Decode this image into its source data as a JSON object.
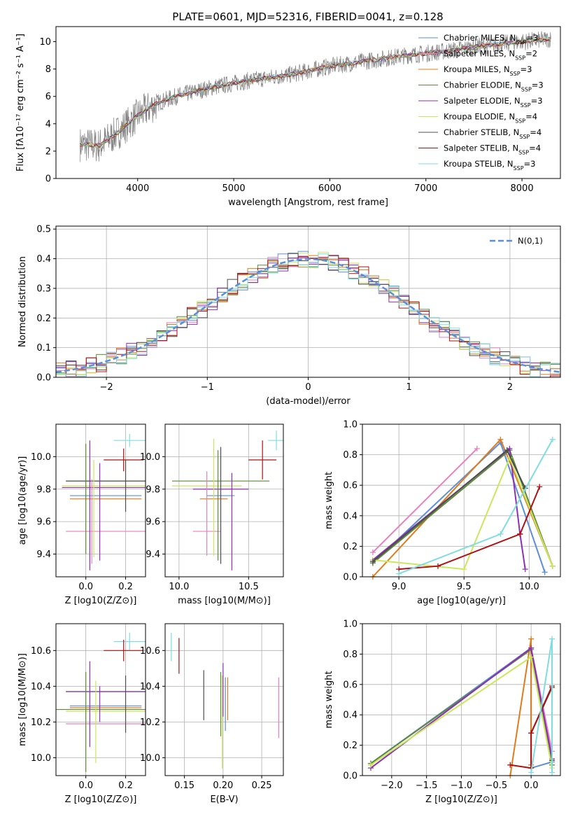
{
  "figure": {
    "title": "PLATE=0601, MJD=52316, FIBERID=0041, z=0.128"
  },
  "colors": {
    "Chabrier MILES": "#5b8fd9",
    "Salpeter MILES": "#e680c0",
    "Kroupa MILES": "#e07b1c",
    "Chabrier ELODIE": "#5e8a3a",
    "Salpeter ELODIE": "#8e2fb8",
    "Kroupa ELODIE": "#c9e85a",
    "Chabrier STELIB": "#4d4d4d",
    "Salpeter STELIB": "#b01010",
    "Kroupa STELIB": "#7fdde0",
    "data": "#808080",
    "normal": "#5b8fd9"
  },
  "chart_data": [
    {
      "id": "spectrum",
      "type": "line",
      "title": "PLATE=0601, MJD=52316, FIBERID=0041, z=0.128",
      "xlabel": "wavelength [Angstrom, rest frame]",
      "ylabel": "Flux [fλ10⁻¹⁷ erg cm⁻² s⁻¹ A⁻¹]",
      "xlim": [
        3150,
        8400
      ],
      "ylim": [
        0,
        11.1
      ],
      "xticks": [
        4000,
        5000,
        6000,
        7000,
        8000
      ],
      "yticks": [
        0,
        2,
        4,
        6,
        8,
        10
      ],
      "legend": "top-right",
      "legend_entries": [
        {
          "name": "Chabrier MILES",
          "nssp": "3"
        },
        {
          "name": "Salpeter MILES",
          "nssp": "2"
        },
        {
          "name": "Kroupa MILES",
          "nssp": "3"
        },
        {
          "name": "Chabrier ELODIE",
          "nssp": "3"
        },
        {
          "name": "Salpeter ELODIE",
          "nssp": "3"
        },
        {
          "name": "Kroupa ELODIE",
          "nssp": "4"
        },
        {
          "name": "Chabrier STELIB",
          "nssp": "4"
        },
        {
          "name": "Salpeter STELIB",
          "nssp": "4"
        },
        {
          "name": "Kroupa STELIB",
          "nssp": "3"
        }
      ],
      "continuum": {
        "x": [
          3400,
          3600,
          3800,
          4000,
          4200,
          4400,
          4800,
          5200,
          5600,
          6000,
          6400,
          6800,
          7200,
          7600,
          8000,
          8300
        ],
        "y": [
          2.5,
          2.4,
          3.4,
          4.6,
          5.5,
          6.0,
          6.7,
          7.2,
          7.6,
          8.2,
          8.6,
          9.0,
          9.3,
          9.7,
          10.0,
          10.2
        ]
      }
    },
    {
      "id": "residual-histogram",
      "type": "bar",
      "xlabel": "(data-model)/error",
      "ylabel": "Normed distribution",
      "xlim": [
        -2.5,
        2.5
      ],
      "ylim": [
        0,
        0.51
      ],
      "xticks": [
        -2,
        -1,
        0,
        1,
        2
      ],
      "yticks": [
        0.0,
        0.1,
        0.2,
        0.3,
        0.4,
        0.5
      ],
      "grid": true,
      "legend": "top-right",
      "legend_label": "N(0,1)",
      "bin_width": 0.1
    },
    {
      "id": "age-vs-Z",
      "type": "scatter",
      "xlabel": "Z [log10(Z/Z⊙)]",
      "ylabel": "age [log10(age/yr)]",
      "xlim": [
        -0.15,
        0.3
      ],
      "ylim": [
        9.26,
        10.2
      ],
      "xticks": [
        0.0,
        0.2
      ],
      "yticks": [
        9.4,
        9.6,
        9.8,
        10.0
      ],
      "grid": true,
      "points": [
        {
          "series": "Chabrier MILES",
          "x": 0.1,
          "xerr": 0.18,
          "y": 9.76,
          "yerr": 0.0
        },
        {
          "series": "Salpeter MILES",
          "x": 0.1,
          "xerr": 0.2,
          "y": 9.54,
          "yerr": 0.0
        },
        {
          "series": "Kroupa MILES",
          "x": 0.1,
          "xerr": 0.18,
          "y": 9.74,
          "yerr": 0.0
        },
        {
          "series": "Chabrier ELODIE",
          "x": 0.1,
          "xerr": 0.2,
          "y": 9.85,
          "yerr": 0.0
        },
        {
          "series": "Salpeter ELODIE",
          "x": 0.1,
          "xerr": 0.22,
          "y": 9.81,
          "yerr": 0.0
        },
        {
          "series": "Kroupa ELODIE",
          "x": 0.1,
          "xerr": 0.22,
          "y": 9.82,
          "yerr": 0.0
        },
        {
          "series": "Chabrier STELIB",
          "x": 0.1,
          "xerr": 0.2,
          "y": 9.85,
          "yerr": 0.0
        },
        {
          "series": "Salpeter STELIB",
          "x": 0.19,
          "xerr": 0.1,
          "y": 9.98,
          "yerr": 0.0
        },
        {
          "series": "Kroupa STELIB",
          "x": 0.22,
          "xerr": 0.08,
          "y": 10.1,
          "yerr": 0.0
        }
      ]
    },
    {
      "id": "age-vs-mass",
      "type": "scatter",
      "xlabel": "mass [log10(M/M⊙)]",
      "xlim": [
        9.9,
        10.75
      ],
      "ylim": [
        9.26,
        10.2
      ],
      "xticks": [
        10.0,
        10.5
      ],
      "yticks": [
        9.4,
        9.6,
        9.8,
        10.0
      ],
      "grid": true
    },
    {
      "id": "mass-weight-vs-age",
      "type": "line",
      "xlabel": "age [log10(age/yr)]",
      "ylabel": "mass weight",
      "xlim": [
        8.72,
        10.24
      ],
      "ylim": [
        0,
        1.0
      ],
      "xticks": [
        9.0,
        9.5,
        10.0
      ],
      "yticks": [
        0.0,
        0.2,
        0.4,
        0.6,
        0.8,
        1.0
      ],
      "grid": true,
      "series": [
        {
          "name": "Chabrier MILES",
          "x": [
            8.8,
            9.78,
            10.12
          ],
          "y": [
            0.09,
            0.88,
            0.03
          ]
        },
        {
          "name": "Salpeter MILES",
          "x": [
            8.8,
            9.6
          ],
          "y": [
            0.16,
            0.84
          ]
        },
        {
          "name": "Kroupa MILES",
          "x": [
            8.8,
            9.78,
            10.18
          ],
          "y": [
            0.0,
            0.9,
            0.07
          ]
        },
        {
          "name": "Chabrier ELODIE",
          "x": [
            8.8,
            9.85,
            10.18
          ],
          "y": [
            0.09,
            0.83,
            0.07
          ]
        },
        {
          "name": "Salpeter ELODIE",
          "x": [
            8.8,
            9.85,
            9.93,
            9.97
          ],
          "y": [
            0.11,
            0.84,
            0.28,
            0.05
          ]
        },
        {
          "name": "Kroupa ELODIE",
          "x": [
            8.8,
            9.5,
            9.85,
            10.18
          ],
          "y": [
            0.11,
            0.05,
            0.78,
            0.07
          ]
        },
        {
          "name": "Chabrier STELIB",
          "x": [
            8.8,
            9.83,
            9.97
          ],
          "y": [
            0.1,
            0.83,
            0.58
          ]
        },
        {
          "name": "Salpeter STELIB",
          "x": [
            9.0,
            9.3,
            9.93,
            10.08
          ],
          "y": [
            0.05,
            0.07,
            0.28,
            0.59
          ]
        },
        {
          "name": "Kroupa STELIB",
          "x": [
            9.0,
            9.78,
            10.18
          ],
          "y": [
            0.02,
            0.28,
            0.9
          ]
        }
      ]
    },
    {
      "id": "mass-vs-Z",
      "type": "scatter",
      "xlabel": "Z [log10(Z/Z⊙)]",
      "ylabel": "mass [log10(M/M⊙)]",
      "xlim": [
        -0.15,
        0.3
      ],
      "ylim": [
        9.9,
        10.75
      ],
      "xticks": [
        0.0,
        0.2
      ],
      "yticks": [
        10.0,
        10.2,
        10.4,
        10.6
      ],
      "grid": true
    },
    {
      "id": "mass-vs-ebv",
      "type": "scatter",
      "xlabel": "E(B-V)",
      "xlim": [
        0.125,
        0.278
      ],
      "ylim": [
        9.9,
        10.75
      ],
      "xticks": [
        0.15,
        0.2,
        0.25
      ],
      "yticks": [
        10.0,
        10.2,
        10.4,
        10.6
      ],
      "grid": true
    },
    {
      "id": "mass-weight-vs-Z",
      "type": "line",
      "xlabel": "Z [log10(Z/Z⊙)]",
      "ylabel": "mass weight",
      "xlim": [
        -2.42,
        0.42
      ],
      "ylim": [
        0,
        1.0
      ],
      "xticks": [
        -2.0,
        -1.5,
        -1.0,
        -0.5,
        0.0
      ],
      "yticks": [
        0.0,
        0.2,
        0.4,
        0.6,
        0.8,
        1.0
      ],
      "grid": true,
      "series": [
        {
          "name": "Chabrier MILES",
          "x": [
            -2.3,
            0.0,
            0.0,
            0.3
          ],
          "y": [
            0.08,
            0.84,
            0.05,
            0.09
          ]
        },
        {
          "name": "Salpeter MILES",
          "x": [
            0.0,
            0.3
          ],
          "y": [
            0.84,
            0.16
          ]
        },
        {
          "name": "Kroupa MILES",
          "x": [
            -0.3,
            0.0,
            0.0
          ],
          "y": [
            0.0,
            0.9,
            0.07
          ]
        },
        {
          "name": "Chabrier ELODIE",
          "x": [
            -2.3,
            0.0,
            0.3
          ],
          "y": [
            0.08,
            0.83,
            0.07
          ]
        },
        {
          "name": "Salpeter ELODIE",
          "x": [
            -2.3,
            0.0,
            0.3
          ],
          "y": [
            0.05,
            0.84,
            0.11
          ]
        },
        {
          "name": "Kroupa ELODIE",
          "x": [
            -2.3,
            0.0,
            0.3
          ],
          "y": [
            0.07,
            0.78,
            0.05
          ]
        },
        {
          "name": "Chabrier STELIB",
          "x": [
            0.0,
            0.3,
            0.3
          ],
          "y": [
            0.28,
            0.58,
            0.1
          ]
        },
        {
          "name": "Salpeter STELIB",
          "x": [
            -0.3,
            0.0,
            0.0,
            0.3
          ],
          "y": [
            0.07,
            0.05,
            0.28,
            0.59
          ]
        },
        {
          "name": "Kroupa STELIB",
          "x": [
            0.0,
            0.3,
            0.3
          ],
          "y": [
            0.02,
            0.9,
            0.02
          ]
        }
      ]
    }
  ]
}
